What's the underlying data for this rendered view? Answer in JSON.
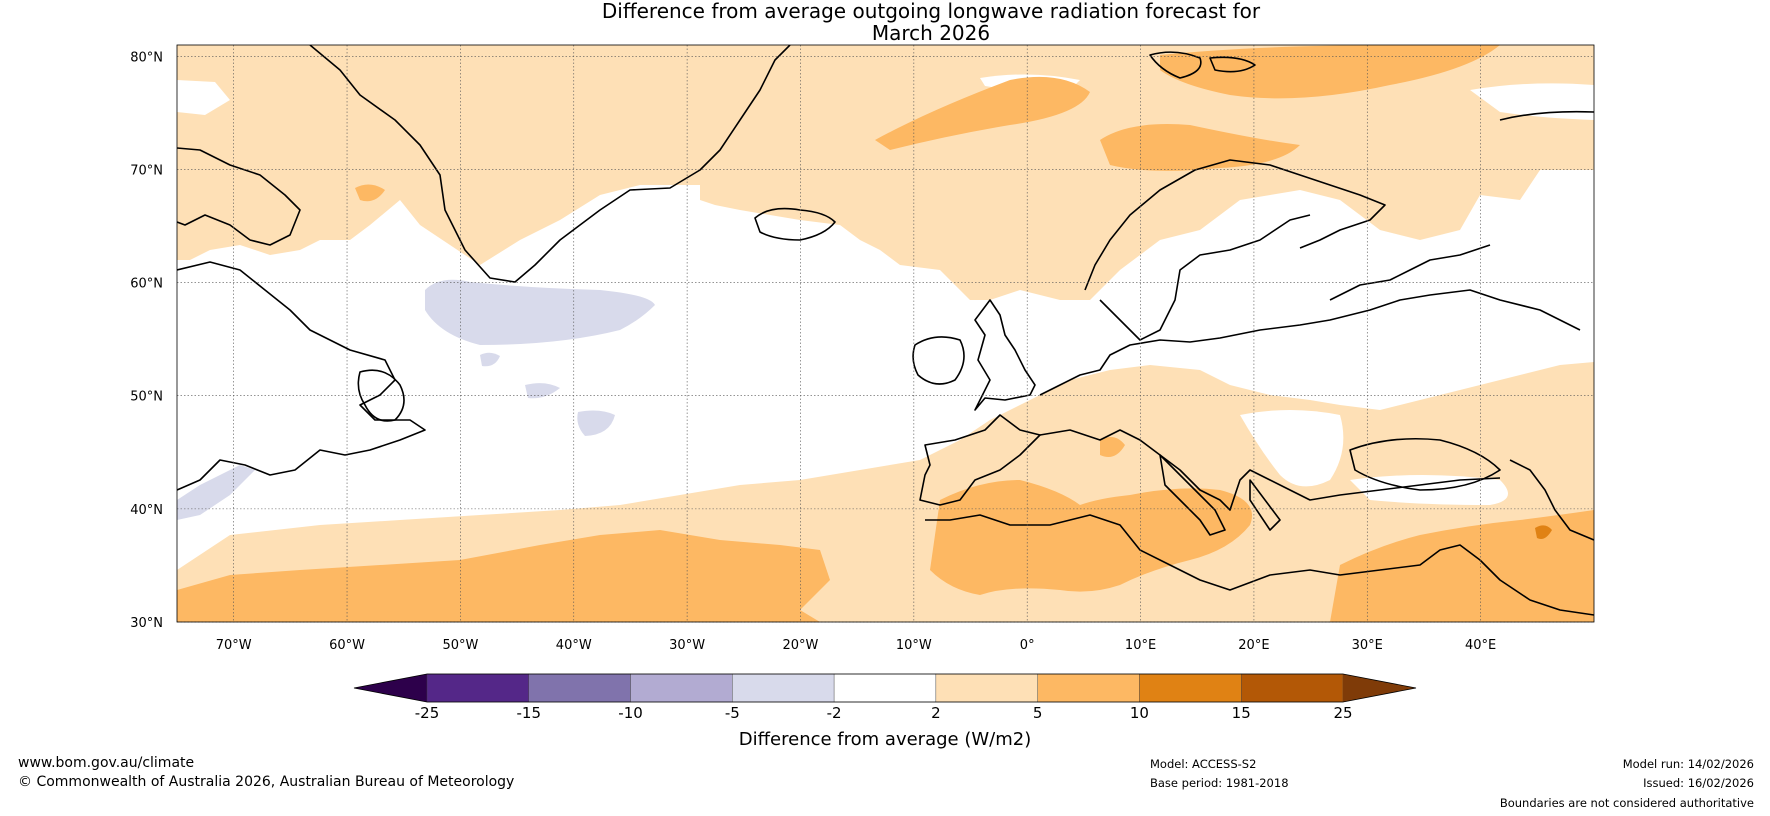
{
  "title": {
    "line1": "Difference from average outgoing longwave radiation forecast for",
    "line2": "March 2026"
  },
  "map": {
    "lat_labels": [
      "80°N",
      "70°N",
      "60°N",
      "50°N",
      "40°N",
      "30°N"
    ],
    "lat_values": [
      80,
      70,
      60,
      50,
      40,
      30
    ],
    "lon_labels": [
      "70°W",
      "60°W",
      "50°W",
      "40°W",
      "30°W",
      "20°W",
      "10°W",
      "0°",
      "10°E",
      "20°E",
      "30°E",
      "40°E"
    ],
    "lon_values": [
      -70,
      -60,
      -50,
      -40,
      -30,
      -20,
      -10,
      0,
      10,
      20,
      30,
      40
    ],
    "extent": {
      "lon_min": -75,
      "lon_max": 50,
      "lat_min": 30,
      "lat_max": 81
    }
  },
  "colorbar": {
    "label": "Difference from average (W/m2)",
    "ticks": [
      "-25",
      "-15",
      "-10",
      "-5",
      "-2",
      "2",
      "5",
      "10",
      "15",
      "25"
    ],
    "under_color": "#2d004b",
    "over_color": "#7f3b08",
    "colors": [
      "#542788",
      "#8073ac",
      "#b2abd2",
      "#d8daeb",
      "#ffffff",
      "#fee0b6",
      "#fdb863",
      "#e08214",
      "#b35806"
    ]
  },
  "footer": {
    "website": "www.bom.gov.au/climate",
    "copyright": "© Commonwealth of Australia 2026, Australian Bureau of Meteorology",
    "model": "Model: ACCESS-S2",
    "base_period": "Base period: 1981-2018",
    "model_run": "Model run: 14/02/2026",
    "issued": "Issued: 16/02/2026",
    "disclaimer": "Boundaries are not considered authoritative"
  }
}
